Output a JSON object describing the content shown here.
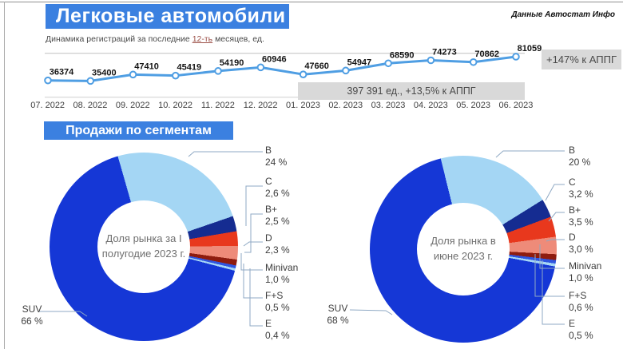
{
  "page": {
    "title": "Легковые автомобили",
    "source": "Данные Автостат Инфо",
    "subtitle": {
      "prefix": "Динамика регистраций за последние ",
      "highlight": "12-ть",
      "suffix": " месяцев, ед."
    },
    "section2_title": "Продажи по сегментам"
  },
  "colors": {
    "accent_blue": "#3b80e0",
    "line_blue": "#4f9ee3",
    "band_gray": "#d9d9d9"
  },
  "chart_data": [
    {
      "type": "line",
      "title": "Динамика регистраций за последние 12-ть месяцев, ед.",
      "x": [
        "07. 2022",
        "08. 2022",
        "09. 2022",
        "10. 2022",
        "11. 2022",
        "12. 2022",
        "01. 2023",
        "02. 2023",
        "03. 2023",
        "04. 2023",
        "05. 2023",
        "06. 2023"
      ],
      "values": [
        36374,
        35400,
        47410,
        45419,
        54190,
        60946,
        47660,
        54947,
        68590,
        74273,
        70862,
        81059
      ],
      "ylim": [
        30000,
        85000
      ],
      "grid": "two horizontal gridlines",
      "legend": "none",
      "annotations": {
        "h2_total": "397 391 ед., +13,5% к АППГ",
        "last_vs_yoy": "+147% к АППГ"
      }
    },
    {
      "type": "pie",
      "donut": true,
      "center_label": "Доля рынка за  I\nполугодие 2023 г.",
      "labels": [
        "B",
        "C",
        "B+",
        "D",
        "Minivan",
        "F+S",
        "E",
        "SUV"
      ],
      "values": [
        24,
        2.6,
        2.5,
        2.3,
        1.0,
        0.5,
        0.4,
        66
      ],
      "display_values": [
        "24 %",
        "2,6 %",
        "2,5 %",
        "2,3 %",
        "1,0 %",
        "0,5 %",
        "0,4 %",
        "66 %"
      ],
      "colors": [
        "#a4d6f4",
        "#152c91",
        "#e8381d",
        "#ee8b79",
        "#8e1c0f",
        "#2f55e0",
        "#a6d7f5",
        "#1537d6"
      ],
      "start_angle_deg": -16
    },
    {
      "type": "pie",
      "donut": true,
      "center_label": "Доля рынка в\nиюне 2023 г.",
      "labels": [
        "B",
        "C",
        "B+",
        "D",
        "Minivan",
        "F+S",
        "E",
        "SUV"
      ],
      "values": [
        20,
        3.2,
        3.5,
        3.0,
        1.0,
        0.6,
        0.5,
        68
      ],
      "display_values": [
        "20 %",
        "3,2 %",
        "3,5 %",
        "3,0 %",
        "1,0 %",
        "0,6 %",
        "0,5 %",
        "68 %"
      ],
      "colors": [
        "#a4d6f4",
        "#152c91",
        "#e8381d",
        "#ee8b79",
        "#8e1c0f",
        "#2f55e0",
        "#a6d7f5",
        "#1537d6"
      ],
      "start_angle_deg": -14
    }
  ]
}
